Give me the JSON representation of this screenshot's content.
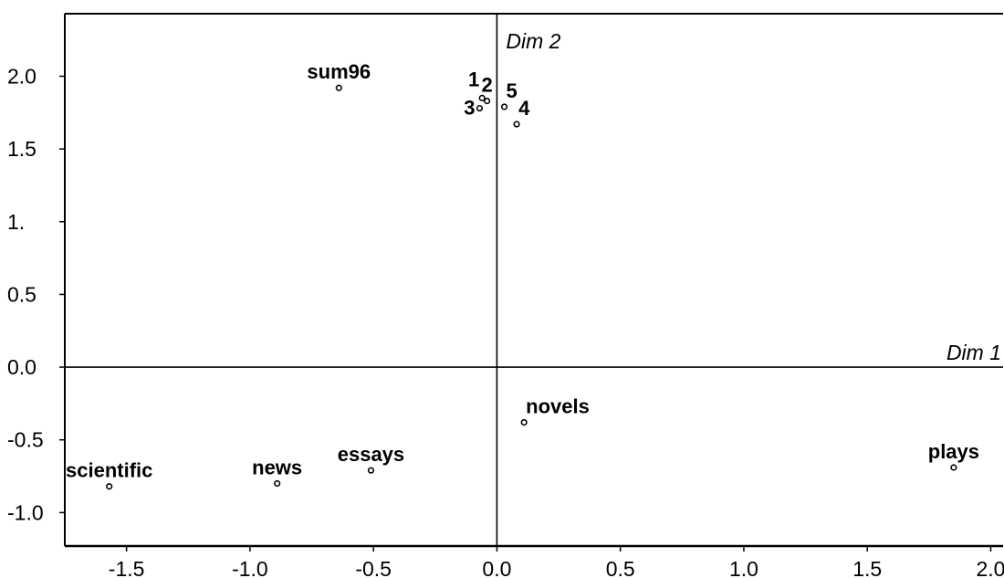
{
  "chart_data": {
    "type": "scatter",
    "title": "",
    "xlabel": "Dim 1",
    "ylabel": "Dim 2",
    "xlim": [
      -1.75,
      2.05
    ],
    "ylim": [
      -1.23,
      2.43
    ],
    "grid": false,
    "xticks": [
      {
        "value": -1.5,
        "label": "-1.5"
      },
      {
        "value": -1.0,
        "label": "-1.0"
      },
      {
        "value": -0.5,
        "label": "-0.5"
      },
      {
        "value": 0.0,
        "label": "0.0"
      },
      {
        "value": 0.5,
        "label": "0.5"
      },
      {
        "value": 1.0,
        "label": "1.0"
      },
      {
        "value": 1.5,
        "label": "1.5"
      },
      {
        "value": 2.0,
        "label": "2.0"
      }
    ],
    "yticks": [
      {
        "value": 2.0,
        "label": "2.0"
      },
      {
        "value": 1.5,
        "label": "1.5"
      },
      {
        "value": 1.0,
        "label": "1."
      },
      {
        "value": 0.5,
        "label": "0.5"
      },
      {
        "value": 0.0,
        "label": "0.0"
      },
      {
        "value": -0.5,
        "label": "-0.5"
      },
      {
        "value": -1.0,
        "label": "-1.0"
      }
    ],
    "points": [
      {
        "label": "sum96",
        "x": -0.64,
        "y": 1.92,
        "label_pos": "above-center"
      },
      {
        "label": "1",
        "x": -0.06,
        "y": 1.85,
        "label_pos": "above-left"
      },
      {
        "label": "2",
        "x": -0.04,
        "y": 1.83,
        "label_pos": "above-center"
      },
      {
        "label": "3",
        "x": -0.07,
        "y": 1.78,
        "label_pos": "left"
      },
      {
        "label": "5",
        "x": 0.03,
        "y": 1.79,
        "label_pos": "above-right"
      },
      {
        "label": "4",
        "x": 0.08,
        "y": 1.67,
        "label_pos": "above-right"
      },
      {
        "label": "novels",
        "x": 0.11,
        "y": -0.38,
        "label_pos": "above-right"
      },
      {
        "label": "essays",
        "x": -0.51,
        "y": -0.71,
        "label_pos": "above-center"
      },
      {
        "label": "news",
        "x": -0.89,
        "y": -0.8,
        "label_pos": "above-center"
      },
      {
        "label": "scientific",
        "x": -1.57,
        "y": -0.82,
        "label_pos": "above-center"
      },
      {
        "label": "plays",
        "x": 1.85,
        "y": -0.69,
        "label_pos": "above-center"
      }
    ]
  }
}
